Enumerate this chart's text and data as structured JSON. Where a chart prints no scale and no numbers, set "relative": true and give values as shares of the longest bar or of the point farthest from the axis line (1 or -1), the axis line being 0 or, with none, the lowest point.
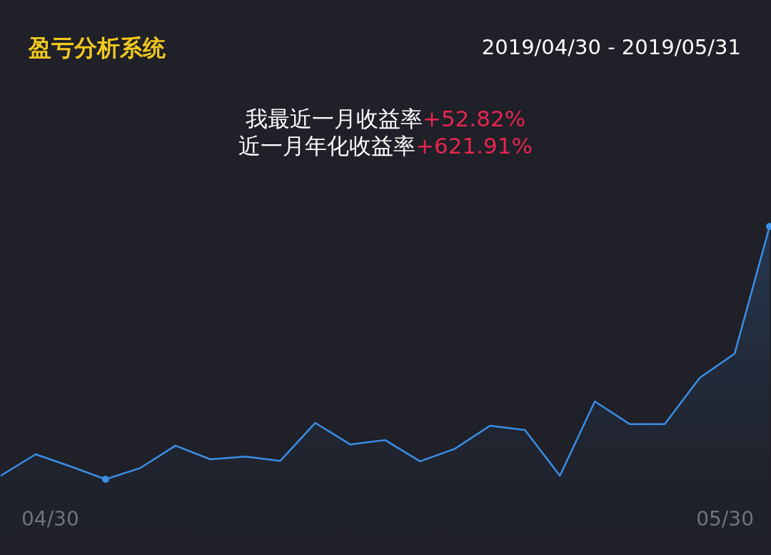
{
  "chart_data": {
    "type": "area",
    "title": "盈亏分析系统",
    "subtitle": "2019/04/30 - 2019/05/31",
    "annotations": [
      "我最近一月收益率+52.82%",
      "近一月年化收益率+621.91%",
      "04/30",
      "05/30"
    ],
    "relative": true,
    "categories": [
      null,
      null,
      null,
      null,
      null,
      null,
      null,
      null,
      null,
      null,
      null,
      null,
      null,
      null,
      null,
      null,
      null,
      null,
      null,
      null,
      null,
      null,
      null
    ],
    "series": [
      {
        "color": "#3a8ee6",
        "values": [
          0.014,
          0.099,
          0.051,
          0,
          0.045,
          0.133,
          0.079,
          0.09,
          0.073,
          0.223,
          0.138,
          0.155,
          0.071,
          0.121,
          0.212,
          0.195,
          0.014,
          0.308,
          0.218,
          0.218,
          0.401,
          0.497,
          1
        ]
      }
    ]
  }
}
